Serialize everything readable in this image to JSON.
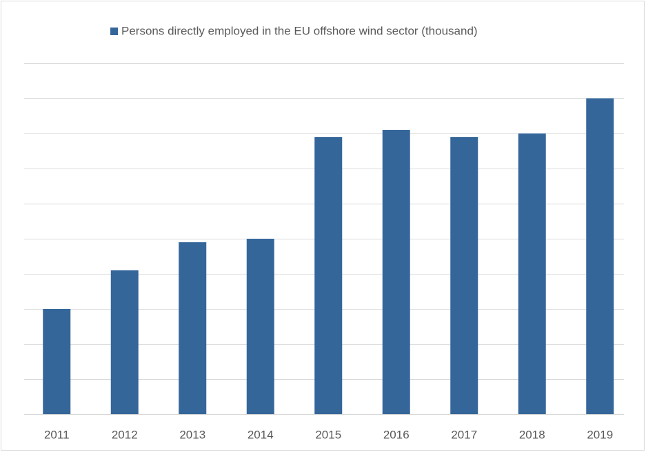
{
  "chart_data": {
    "type": "bar",
    "categories": [
      "2011",
      "2012",
      "2013",
      "2014",
      "2015",
      "2016",
      "2017",
      "2018",
      "2019"
    ],
    "series": [
      {
        "name": "Persons directly employed in the EU offshore wind sector (thousand)",
        "color": "#35669a",
        "values": [
          3.0,
          4.1,
          4.9,
          5.0,
          7.9,
          8.1,
          7.9,
          8.0,
          9.0
        ]
      }
    ],
    "ylim": [
      0,
      10
    ],
    "yticks": [
      0,
      1,
      2,
      3,
      4,
      5,
      6,
      7,
      8,
      9,
      10
    ],
    "grid": true,
    "legend": "top"
  }
}
